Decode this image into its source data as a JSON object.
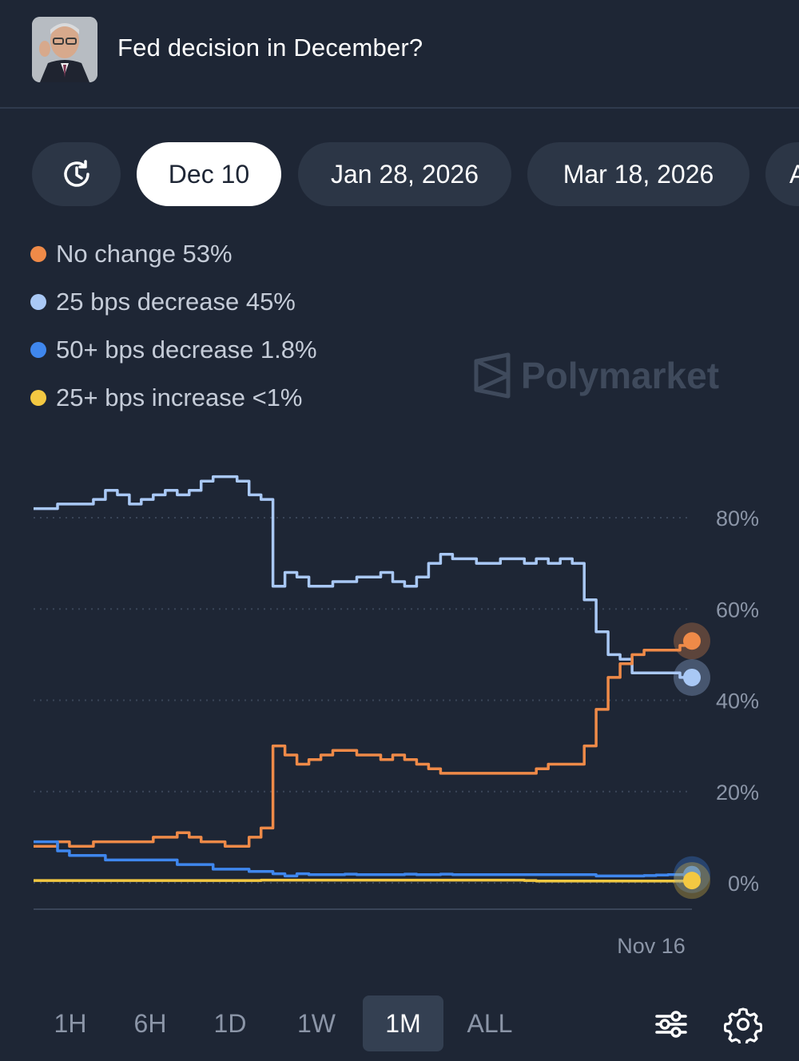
{
  "header": {
    "title": "Fed decision in December?"
  },
  "date_tabs": [
    {
      "label": "Dec 10",
      "active": true
    },
    {
      "label": "Jan 28, 2026",
      "active": false
    },
    {
      "label": "Mar 18, 2026",
      "active": false
    },
    {
      "label": "A",
      "active": false
    }
  ],
  "icons": {
    "history": "history-clock-icon",
    "filter": "sliders-icon",
    "settings": "gear-icon",
    "brand": "polymarket-logo-icon"
  },
  "legend": [
    {
      "label": "No change 53%",
      "color": "#ef8a48"
    },
    {
      "label": "25 bps decrease 45%",
      "color": "#a9c8f5"
    },
    {
      "label": "50+ bps decrease 1.8%",
      "color": "#3f87ee"
    },
    {
      "label": "25+ bps increase <1%",
      "color": "#f3c842"
    }
  ],
  "watermark": "Polymarket",
  "time_ranges": [
    {
      "label": "1H",
      "active": false
    },
    {
      "label": "6H",
      "active": false
    },
    {
      "label": "1D",
      "active": false
    },
    {
      "label": "1W",
      "active": false
    },
    {
      "label": "1M",
      "active": true
    },
    {
      "label": "ALL",
      "active": false
    }
  ],
  "chart_data": {
    "type": "line",
    "y_unit": "%",
    "ylim": [
      0,
      90
    ],
    "y_ticks": [
      0,
      20,
      40,
      60,
      80
    ],
    "y_tick_labels": [
      "0%",
      "20%",
      "40%",
      "60%",
      "80%"
    ],
    "x_tick_labels": [
      "Nov 16"
    ],
    "grid": true,
    "series": [
      {
        "name": "25 bps decrease",
        "color": "#a9c8f5",
        "values": [
          82,
          82,
          83,
          83,
          83,
          84,
          86,
          85,
          83,
          84,
          85,
          86,
          85,
          86,
          88,
          89,
          89,
          88,
          85,
          84,
          65,
          68,
          67,
          65,
          65,
          66,
          66,
          67,
          67,
          68,
          66,
          65,
          67,
          70,
          72,
          71,
          71,
          70,
          70,
          71,
          71,
          70,
          71,
          70,
          71,
          70,
          62,
          55,
          50,
          49,
          46,
          46,
          46,
          46,
          45,
          45
        ]
      },
      {
        "name": "No change",
        "color": "#ef8a48",
        "values": [
          8,
          8,
          9,
          8,
          8,
          9,
          9,
          9,
          9,
          9,
          10,
          10,
          11,
          10,
          9,
          9,
          8,
          8,
          10,
          12,
          30,
          28,
          26,
          27,
          28,
          29,
          29,
          28,
          28,
          27,
          28,
          27,
          26,
          25,
          24,
          24,
          24,
          24,
          24,
          24,
          24,
          24,
          25,
          26,
          26,
          26,
          30,
          38,
          45,
          48,
          50,
          51,
          51,
          51,
          52,
          53
        ]
      },
      {
        "name": "50+ bps decrease",
        "color": "#3f87ee",
        "values": [
          9,
          9,
          7,
          6,
          6,
          6,
          5,
          5,
          5,
          5,
          5,
          5,
          4,
          4,
          4,
          3,
          3,
          3,
          2.5,
          2.5,
          2,
          1.5,
          2,
          1.8,
          1.8,
          1.8,
          1.9,
          1.8,
          1.8,
          1.8,
          1.8,
          1.9,
          1.8,
          1.8,
          1.9,
          1.8,
          1.8,
          1.8,
          1.8,
          1.8,
          1.8,
          1.8,
          1.8,
          1.8,
          1.8,
          1.8,
          1.8,
          1.5,
          1.5,
          1.5,
          1.5,
          1.6,
          1.7,
          1.8,
          1.8,
          1.8
        ]
      },
      {
        "name": "25+ bps increase",
        "color": "#f3c842",
        "values": [
          0.5,
          0.5,
          0.5,
          0.5,
          0.5,
          0.5,
          0.5,
          0.5,
          0.5,
          0.5,
          0.5,
          0.5,
          0.5,
          0.5,
          0.5,
          0.5,
          0.5,
          0.5,
          0.5,
          0.6,
          0.6,
          0.6,
          0.6,
          0.6,
          0.6,
          0.6,
          0.6,
          0.6,
          0.6,
          0.6,
          0.6,
          0.6,
          0.6,
          0.6,
          0.6,
          0.6,
          0.6,
          0.6,
          0.6,
          0.6,
          0.6,
          0.5,
          0.4,
          0.4,
          0.4,
          0.4,
          0.4,
          0.4,
          0.4,
          0.4,
          0.4,
          0.4,
          0.4,
          0.4,
          0.4,
          0.5
        ]
      }
    ]
  }
}
